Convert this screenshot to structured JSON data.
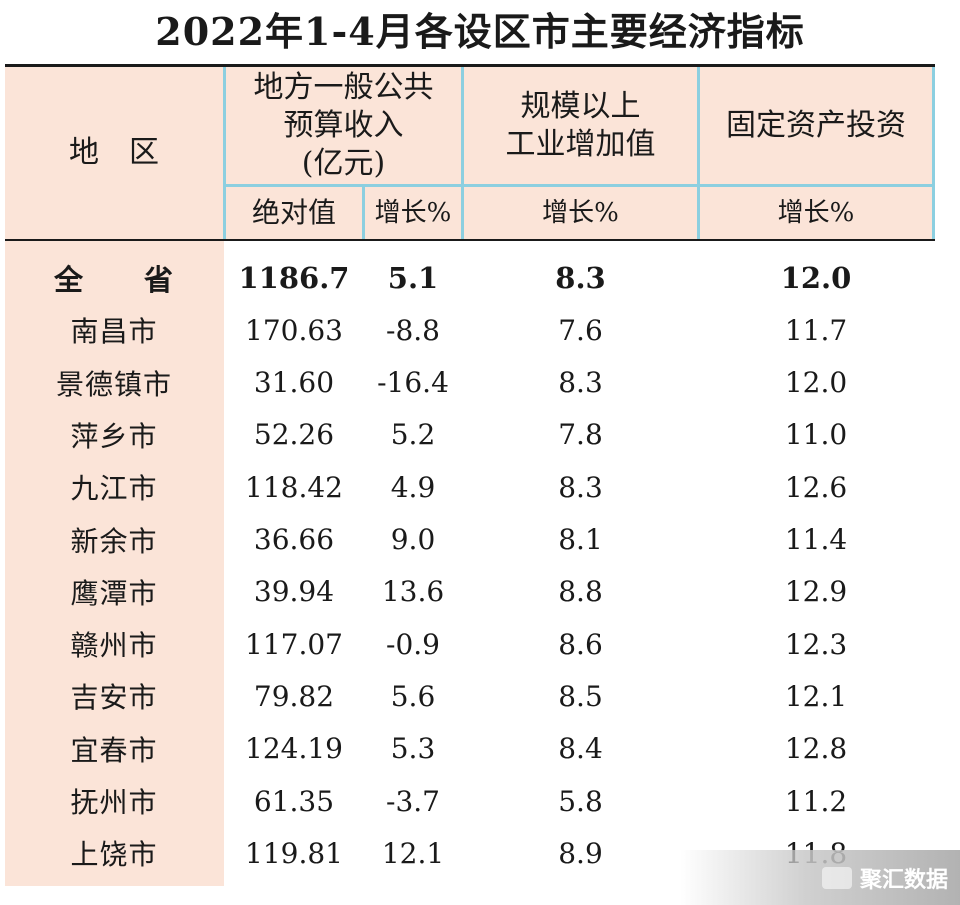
{
  "title": "2022年1-4月各设区市主要经济指标",
  "header": {
    "region": "地　区",
    "budget_line1": "地方一般公共",
    "budget_line2": "预算收入",
    "budget_line3": "(亿元)",
    "budget_abs": "绝对值",
    "budget_growth": "增长%",
    "industry_line1": "规模以上",
    "industry_line2": "工业增加值",
    "industry_growth": "增长%",
    "investment": "固定资产投资",
    "investment_growth": "增长%"
  },
  "rows": [
    {
      "region": "全　　省",
      "budget_abs": "1186.7",
      "budget_growth": "5.1",
      "industry_growth": "8.3",
      "investment_growth": "12.0"
    },
    {
      "region": "南昌市",
      "budget_abs": "170.63",
      "budget_growth": "-8.8",
      "industry_growth": "7.6",
      "investment_growth": "11.7"
    },
    {
      "region": "景德镇市",
      "budget_abs": "31.60",
      "budget_growth": "-16.4",
      "industry_growth": "8.3",
      "investment_growth": "12.0"
    },
    {
      "region": "萍乡市",
      "budget_abs": "52.26",
      "budget_growth": "5.2",
      "industry_growth": "7.8",
      "investment_growth": "11.0"
    },
    {
      "region": "九江市",
      "budget_abs": "118.42",
      "budget_growth": "4.9",
      "industry_growth": "8.3",
      "investment_growth": "12.6"
    },
    {
      "region": "新余市",
      "budget_abs": "36.66",
      "budget_growth": "9.0",
      "industry_growth": "8.1",
      "investment_growth": "11.4"
    },
    {
      "region": "鹰潭市",
      "budget_abs": "39.94",
      "budget_growth": "13.6",
      "industry_growth": "8.8",
      "investment_growth": "12.9"
    },
    {
      "region": "赣州市",
      "budget_abs": "117.07",
      "budget_growth": "-0.9",
      "industry_growth": "8.6",
      "investment_growth": "12.3"
    },
    {
      "region": "吉安市",
      "budget_abs": "79.82",
      "budget_growth": "5.6",
      "industry_growth": "8.5",
      "investment_growth": "12.1"
    },
    {
      "region": "宜春市",
      "budget_abs": "124.19",
      "budget_growth": "5.3",
      "industry_growth": "8.4",
      "investment_growth": "12.8"
    },
    {
      "region": "抚州市",
      "budget_abs": "61.35",
      "budget_growth": "-3.7",
      "industry_growth": "5.8",
      "investment_growth": "11.2"
    },
    {
      "region": "上饶市",
      "budget_abs": "119.81",
      "budget_growth": "12.1",
      "industry_growth": "8.9",
      "investment_growth": "11.8"
    }
  ],
  "watermark": "聚汇数据",
  "colors": {
    "header_bg": "#fbe4d8",
    "grid_line": "#8ccfe0",
    "rule": "#1a1a1a"
  }
}
